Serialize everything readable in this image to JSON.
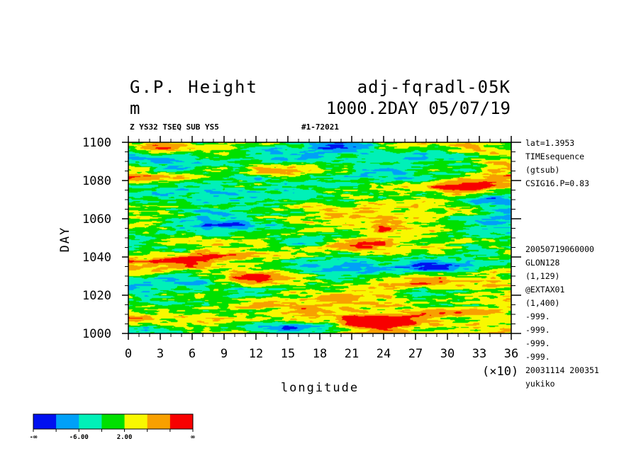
{
  "header": {
    "title_left": "G.P. Height",
    "title_right": "adj-fqradl-05K",
    "units": "m",
    "level_date": "1000.2DAY 05/07/19",
    "sub_left": "Z YS32 TSEQ SUB YS5",
    "sub_right": "#1-72021"
  },
  "side_info": {
    "top": [
      "lat=1.3953",
      "TIMEsequence",
      "(gtsub)",
      "CSIG16.P=0.83"
    ],
    "bottom": [
      "20050719060000",
      "GLON128",
      "(1,129)",
      "@EXTAX01",
      "(1,400)",
      "-999.",
      "-999.",
      "-999.",
      "-999.",
      "20031114 200351",
      "yukiko"
    ]
  },
  "chart_data": {
    "type": "heatmap",
    "xlabel": "longitude",
    "ylabel": "DAY",
    "x_multiplier_label": "(×10)",
    "xlim": [
      0,
      36
    ],
    "ylim": [
      1000,
      1100
    ],
    "x_ticks": [
      "0",
      "3",
      "6",
      "9",
      "12",
      "15",
      "18",
      "21",
      "24",
      "27",
      "30",
      "33",
      "36"
    ],
    "y_ticks": [
      "1000",
      "1020",
      "1040",
      "1060",
      "1080",
      "1100"
    ],
    "colorbar": {
      "colors": [
        "#0010f0",
        "#00a0f8",
        "#00f0b8",
        "#00e000",
        "#f8f800",
        "#f8a000",
        "#f80000"
      ],
      "labels": [
        "-∞",
        "-6.00",
        "2.00",
        "∞"
      ]
    },
    "warm_anomalies": [
      {
        "lon": 23.5,
        "day": 1006,
        "strength": 3.2
      },
      {
        "lon": 12.0,
        "day": 1029,
        "strength": 2.4
      },
      {
        "lon": 5.5,
        "day": 1038,
        "strength": 2.0
      },
      {
        "lon": 22.0,
        "day": 1046,
        "strength": 1.8
      },
      {
        "lon": 31.0,
        "day": 1077,
        "strength": 1.9
      },
      {
        "lon": 3.0,
        "day": 1097,
        "strength": 1.6
      },
      {
        "lon": 14.0,
        "day": 1086,
        "strength": 1.4
      }
    ],
    "cold_anomalies": [
      {
        "lon": 16.0,
        "day": 1003,
        "strength": 1.8
      },
      {
        "lon": 29.5,
        "day": 1035,
        "strength": 1.5
      },
      {
        "lon": 9.0,
        "day": 1057,
        "strength": 1.6
      },
      {
        "lon": 34.0,
        "day": 1070,
        "strength": 1.3
      },
      {
        "lon": 20.0,
        "day": 1099,
        "strength": 1.4
      }
    ]
  }
}
